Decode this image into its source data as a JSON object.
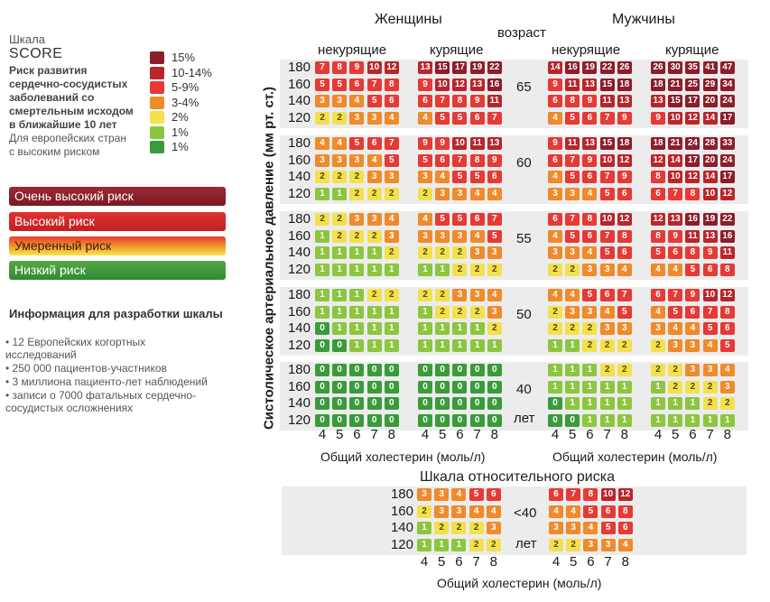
{
  "title_scale": "Шкала",
  "title_name": "SCORE",
  "desc": "Риск развития сердечно-сосудистых заболеваний со смертельным исходом в ближайшие 10 лет",
  "desc2": "Для европейских стран с высоким риском",
  "legend": [
    {
      "label": "15%",
      "color": "#8c1d2b"
    },
    {
      "label": "10-14%",
      "color": "#b8262c"
    },
    {
      "label": "5-9%",
      "color": "#e53a35"
    },
    {
      "label": "3-4%",
      "color": "#f08a2a"
    },
    {
      "label": "2%",
      "color": "#f3e04d"
    },
    {
      "label": "1%",
      "color": "#8cc63f"
    },
    {
      "label": "1%",
      "color": "#3a9b3b"
    }
  ],
  "risk_levels": [
    "Очень высокий риск",
    "Высокий риск",
    "Умеренный риск",
    "Низкий риск"
  ],
  "info_title": "Информация для разработки шкалы",
  "info_items": [
    "• 12 Европейских когортных исследований",
    "• 250 000 пациентов-участников",
    "• 3 миллиона пациенто-лет наблюдений",
    "• записи о 7000 фатальных сердечно-сосудистых осложнениях"
  ],
  "header_women": "Женщины",
  "header_men": "Мужчины",
  "header_age": "возраст",
  "sub_nonsmoking": "некурящие",
  "sub_smoking": "курящие",
  "ylabel": "Систолическое артериальное давление (мм рт. ст.)",
  "bottom_title": "Шкала относительного риска",
  "age_unit": "лет",
  "chart_data": {
    "type": "table",
    "title": "Шкала SCORE",
    "xlabel": "Общий холестерин (моль/л)",
    "cholesterol_ticks": [
      "4",
      "5",
      "6",
      "7",
      "8"
    ],
    "bp_levels": [
      "180",
      "160",
      "140",
      "120"
    ],
    "ages": [
      "65",
      "60",
      "55",
      "50",
      "40"
    ],
    "women_nonsmoking": [
      [
        [
          7,
          8,
          9,
          10,
          12
        ],
        [
          5,
          5,
          6,
          7,
          8
        ],
        [
          3,
          3,
          4,
          5,
          6
        ],
        [
          2,
          2,
          3,
          3,
          4
        ]
      ],
      [
        [
          4,
          4,
          5,
          6,
          7
        ],
        [
          3,
          3,
          3,
          4,
          5
        ],
        [
          2,
          2,
          2,
          3,
          3
        ],
        [
          1,
          1,
          2,
          2,
          2
        ]
      ],
      [
        [
          2,
          2,
          3,
          3,
          4
        ],
        [
          1,
          2,
          2,
          2,
          3
        ],
        [
          1,
          1,
          1,
          1,
          2
        ],
        [
          1,
          1,
          1,
          1,
          1
        ]
      ],
      [
        [
          1,
          1,
          1,
          2,
          2
        ],
        [
          1,
          1,
          1,
          1,
          1
        ],
        [
          0,
          1,
          1,
          1,
          1
        ],
        [
          0,
          0,
          1,
          1,
          1
        ]
      ],
      [
        [
          0,
          0,
          0,
          0,
          0
        ],
        [
          0,
          0,
          0,
          0,
          0
        ],
        [
          0,
          0,
          0,
          0,
          0
        ],
        [
          0,
          0,
          0,
          0,
          0
        ]
      ]
    ],
    "women_smoking": [
      [
        [
          13,
          15,
          17,
          19,
          22
        ],
        [
          9,
          10,
          12,
          13,
          16
        ],
        [
          6,
          7,
          8,
          9,
          11
        ],
        [
          4,
          5,
          5,
          6,
          7
        ]
      ],
      [
        [
          9,
          9,
          10,
          11,
          13
        ],
        [
          5,
          6,
          7,
          8,
          9
        ],
        [
          3,
          4,
          5,
          5,
          6
        ],
        [
          2,
          3,
          3,
          4,
          4
        ]
      ],
      [
        [
          4,
          5,
          5,
          6,
          7
        ],
        [
          3,
          3,
          3,
          4,
          5
        ],
        [
          2,
          2,
          2,
          3,
          3
        ],
        [
          1,
          1,
          2,
          2,
          2
        ]
      ],
      [
        [
          2,
          2,
          3,
          3,
          4
        ],
        [
          1,
          2,
          2,
          2,
          3
        ],
        [
          1,
          1,
          1,
          1,
          2
        ],
        [
          1,
          1,
          1,
          1,
          1
        ]
      ],
      [
        [
          0,
          0,
          0,
          0,
          0
        ],
        [
          0,
          0,
          0,
          0,
          0
        ],
        [
          0,
          0,
          0,
          0,
          0
        ],
        [
          0,
          0,
          0,
          0,
          0
        ]
      ]
    ],
    "men_nonsmoking": [
      [
        [
          14,
          16,
          19,
          22,
          26
        ],
        [
          9,
          11,
          13,
          15,
          18
        ],
        [
          6,
          8,
          9,
          11,
          13
        ],
        [
          4,
          5,
          6,
          7,
          9
        ]
      ],
      [
        [
          9,
          11,
          13,
          15,
          18
        ],
        [
          6,
          7,
          9,
          10,
          12
        ],
        [
          4,
          5,
          6,
          7,
          9
        ],
        [
          3,
          3,
          4,
          5,
          6
        ]
      ],
      [
        [
          6,
          7,
          8,
          10,
          12
        ],
        [
          4,
          5,
          6,
          7,
          8
        ],
        [
          3,
          3,
          4,
          5,
          6
        ],
        [
          2,
          2,
          3,
          3,
          4
        ]
      ],
      [
        [
          4,
          4,
          5,
          6,
          7
        ],
        [
          2,
          3,
          3,
          4,
          5
        ],
        [
          2,
          2,
          2,
          3,
          3
        ],
        [
          1,
          1,
          2,
          2,
          2
        ]
      ],
      [
        [
          1,
          1,
          1,
          2,
          2
        ],
        [
          1,
          1,
          1,
          1,
          1
        ],
        [
          0,
          1,
          1,
          1,
          1
        ],
        [
          0,
          0,
          1,
          1,
          1
        ]
      ]
    ],
    "men_smoking": [
      [
        [
          26,
          30,
          35,
          41,
          47
        ],
        [
          18,
          21,
          25,
          29,
          34
        ],
        [
          13,
          15,
          17,
          20,
          24
        ],
        [
          9,
          10,
          12,
          14,
          17
        ]
      ],
      [
        [
          18,
          21,
          24,
          28,
          33
        ],
        [
          12,
          14,
          17,
          20,
          24
        ],
        [
          8,
          10,
          12,
          14,
          17
        ],
        [
          6,
          7,
          8,
          10,
          12
        ]
      ],
      [
        [
          12,
          13,
          16,
          19,
          22
        ],
        [
          8,
          9,
          11,
          13,
          16
        ],
        [
          5,
          6,
          8,
          9,
          11
        ],
        [
          4,
          4,
          5,
          6,
          8
        ]
      ],
      [
        [
          6,
          7,
          9,
          10,
          12
        ],
        [
          4,
          5,
          6,
          7,
          8
        ],
        [
          3,
          4,
          4,
          5,
          6
        ],
        [
          2,
          3,
          3,
          4,
          5
        ]
      ],
      [
        [
          2,
          2,
          3,
          3,
          4
        ],
        [
          1,
          2,
          2,
          2,
          3
        ],
        [
          1,
          1,
          1,
          2,
          2
        ],
        [
          1,
          1,
          1,
          1,
          1
        ]
      ]
    ],
    "relative": {
      "age": "<40",
      "nonsmoking": [
        [
          3,
          3,
          4,
          5,
          6
        ],
        [
          2,
          3,
          3,
          4,
          4
        ],
        [
          1,
          2,
          2,
          2,
          3
        ],
        [
          1,
          1,
          1,
          2,
          2
        ]
      ],
      "smoking": [
        [
          6,
          7,
          8,
          10,
          12
        ],
        [
          4,
          4,
          5,
          6,
          8
        ],
        [
          3,
          3,
          4,
          5,
          6
        ],
        [
          2,
          2,
          3,
          3,
          4
        ]
      ]
    }
  }
}
